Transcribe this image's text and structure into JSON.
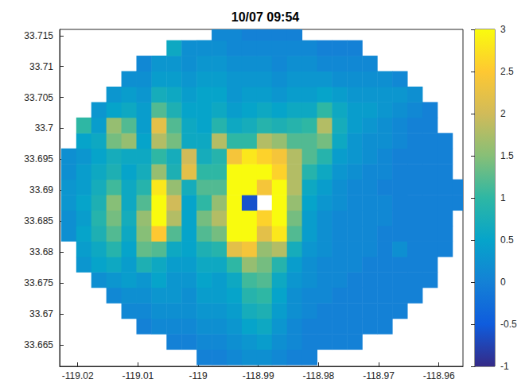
{
  "chart_data": {
    "type": "heatmap",
    "title": "10/07 09:54",
    "x": [
      -119.0215,
      -119.019,
      -119.0165,
      -119.014,
      -119.0115,
      -119.009,
      -119.0065,
      -119.004,
      -119.0015,
      -118.999,
      -118.9965,
      -118.994,
      -118.9915,
      -118.989,
      -118.9865,
      -118.984,
      -118.9815,
      -118.979,
      -118.9765,
      -118.974,
      -118.9715,
      -118.969,
      -118.9665,
      -118.964,
      -118.9615,
      -118.959,
      -118.9565
    ],
    "y": [
      33.663,
      33.6655,
      33.668,
      33.6705,
      33.673,
      33.6755,
      33.678,
      33.6805,
      33.683,
      33.6855,
      33.688,
      33.6905,
      33.693,
      33.6955,
      33.698,
      33.7005,
      33.703,
      33.7055,
      33.708,
      33.7105,
      33.713,
      33.7155
    ],
    "z": [
      [
        null,
        null,
        null,
        null,
        null,
        null,
        null,
        null,
        null,
        0,
        0,
        0.1,
        0.2,
        0.2,
        0.1,
        0,
        0,
        null,
        null,
        null,
        null,
        null,
        null,
        null,
        null,
        null,
        null
      ],
      [
        null,
        null,
        null,
        null,
        null,
        null,
        null,
        0,
        0,
        0.1,
        0.1,
        0.2,
        0.3,
        0.4,
        0.2,
        0.1,
        0,
        0,
        0,
        0,
        null,
        null,
        null,
        null,
        null,
        null,
        null
      ],
      [
        null,
        null,
        null,
        null,
        null,
        0,
        0.1,
        0.1,
        0.1,
        0.2,
        0.2,
        0.3,
        0.5,
        0.6,
        0.3,
        0.1,
        0,
        0,
        0,
        0,
        0,
        0,
        null,
        null,
        null,
        null,
        null
      ],
      [
        null,
        null,
        null,
        null,
        0.1,
        0.1,
        0.2,
        0.2,
        0.2,
        0.3,
        0.3,
        0.4,
        0.7,
        0.8,
        0.4,
        0.2,
        0.1,
        0,
        0,
        0,
        0,
        0,
        0,
        null,
        null,
        null,
        null
      ],
      [
        null,
        null,
        null,
        0.1,
        0.2,
        0.2,
        0.3,
        0.3,
        0.2,
        0.4,
        0.4,
        0.5,
        0.9,
        1.0,
        0.5,
        0.2,
        0.1,
        0.1,
        0,
        0,
        0,
        0,
        0,
        0,
        null,
        null,
        null
      ],
      [
        null,
        null,
        0.2,
        0.3,
        0.4,
        0.3,
        0.5,
        0.3,
        0.3,
        0.5,
        0.4,
        0.6,
        1.1,
        1.2,
        0.6,
        0.3,
        0.2,
        0.1,
        0.1,
        0,
        0,
        0,
        0,
        0,
        0,
        null,
        null
      ],
      [
        null,
        0.3,
        0.5,
        0.6,
        0.4,
        0.8,
        0.6,
        0.4,
        0.4,
        0.6,
        0.6,
        1.0,
        1.6,
        1.4,
        0.9,
        0.4,
        0.2,
        0.1,
        0.1,
        0.1,
        0,
        0,
        0,
        0,
        0,
        null,
        null
      ],
      [
        null,
        0.4,
        0.6,
        0.9,
        0.5,
        1.3,
        1.2,
        0.6,
        0.5,
        0.8,
        0.9,
        2.2,
        2.4,
        1.6,
        1.8,
        0.7,
        0.3,
        0.2,
        0.1,
        0.1,
        0.1,
        0,
        0.2,
        0,
        0,
        0,
        null
      ],
      [
        0.2,
        0.5,
        0.8,
        1.2,
        0.6,
        1.5,
        2.5,
        1.2,
        0.5,
        1.2,
        1.4,
        3,
        3,
        2.2,
        2.8,
        1.2,
        0.4,
        0.2,
        0.1,
        0.1,
        0.1,
        0,
        0,
        0,
        0,
        0,
        null
      ],
      [
        0.2,
        0.4,
        0.9,
        1.4,
        0.7,
        1.6,
        3,
        1.8,
        0.5,
        1.4,
        1.8,
        3,
        3,
        2.6,
        3,
        1.4,
        0.4,
        0.2,
        0.1,
        0.1,
        0.1,
        0.1,
        0,
        0,
        0,
        0,
        null
      ],
      [
        0.3,
        0.5,
        0.8,
        1.5,
        0.6,
        1.2,
        3,
        2.0,
        0.5,
        1.0,
        1.6,
        3,
        -0.6,
        null,
        3,
        1.6,
        0.5,
        0.3,
        0.2,
        0.1,
        0.1,
        0.1,
        0,
        0,
        0,
        0,
        0
      ],
      [
        0.3,
        0.4,
        0.7,
        1.1,
        0.6,
        0.9,
        2.8,
        1.6,
        0.7,
        1.2,
        1.2,
        3,
        3,
        2.4,
        3,
        1.8,
        0.6,
        0.4,
        0.2,
        0.1,
        0.1,
        0,
        0,
        0,
        0,
        0,
        0
      ],
      [
        0.2,
        0.4,
        0.6,
        0.8,
        0.5,
        0.7,
        1.6,
        0.8,
        2.2,
        1.0,
        1.0,
        3,
        3,
        3,
        2.6,
        1.8,
        0.9,
        0.6,
        0.3,
        0.2,
        0.1,
        0.1,
        0,
        0,
        0,
        0,
        null
      ],
      [
        0.2,
        0.3,
        0.5,
        0.7,
        0.6,
        0.6,
        1.0,
        0.7,
        2.0,
        0.7,
        0.9,
        2.4,
        2.8,
        2.6,
        2.4,
        1.8,
        1.2,
        0.9,
        0.4,
        0.3,
        0.2,
        0.1,
        0,
        0,
        0,
        0,
        null
      ],
      [
        null,
        0.5,
        0.6,
        1.4,
        1.6,
        0.5,
        1.8,
        1.4,
        0.6,
        0.6,
        1.8,
        1.0,
        1.0,
        1.8,
        1.6,
        1.2,
        1.2,
        1.4,
        0.6,
        0.3,
        0.2,
        0.2,
        0.1,
        0,
        0,
        0,
        null
      ],
      [
        null,
        1.0,
        0.4,
        1.6,
        1.2,
        0.4,
        2.2,
        1.2,
        0.6,
        0.5,
        0.9,
        0.6,
        0.7,
        0.9,
        0.8,
        0.9,
        1.0,
        1.8,
        0.7,
        0.4,
        0.3,
        0.2,
        0.1,
        0,
        0,
        null,
        null
      ],
      [
        null,
        null,
        0.3,
        0.5,
        0.6,
        0.4,
        1.2,
        0.8,
        0.5,
        0.5,
        0.6,
        0.4,
        0.5,
        0.6,
        0.5,
        0.6,
        0.6,
        1.0,
        0.6,
        0.4,
        0.4,
        0.3,
        0.2,
        0.1,
        0,
        null,
        null
      ],
      [
        null,
        null,
        null,
        0.3,
        0.4,
        0.3,
        0.7,
        0.6,
        0.4,
        0.5,
        0.5,
        0.3,
        0.4,
        0.4,
        0.3,
        0.4,
        0.4,
        0.5,
        0.4,
        0.3,
        0.3,
        0.3,
        0.3,
        0.2,
        null,
        null,
        null
      ],
      [
        null,
        null,
        null,
        null,
        0.2,
        0.2,
        0.4,
        0.4,
        0.3,
        0.4,
        0.4,
        0.3,
        0.3,
        0.3,
        0.2,
        0.3,
        0.3,
        0.3,
        0.2,
        0.2,
        0.2,
        0.2,
        0.1,
        null,
        null,
        null,
        null
      ],
      [
        null,
        null,
        null,
        null,
        null,
        0.1,
        0.3,
        0.3,
        0.2,
        0.3,
        0.3,
        0.2,
        0.2,
        0.2,
        0.1,
        0.2,
        0.2,
        0.1,
        0.1,
        0.1,
        0.1,
        null,
        null,
        null,
        null,
        null,
        null
      ],
      [
        null,
        null,
        null,
        null,
        null,
        null,
        null,
        0.6,
        0.2,
        0.2,
        0.2,
        0.1,
        0.1,
        0.1,
        0.1,
        0.1,
        0.1,
        0,
        0,
        0,
        null,
        null,
        null,
        null,
        null,
        null,
        null
      ],
      [
        null,
        null,
        null,
        null,
        null,
        null,
        null,
        null,
        null,
        null,
        0.1,
        0.1,
        0,
        0,
        0,
        0,
        null,
        null,
        null,
        null,
        null,
        null,
        null,
        null,
        null,
        null,
        null
      ]
    ],
    "xlim": [
      -119.023,
      -118.956
    ],
    "ylim": [
      33.6615,
      33.716
    ],
    "xticks": [
      -119.02,
      -119.01,
      -119,
      -118.99,
      -118.98,
      -118.97,
      -118.96
    ],
    "yticks": [
      33.665,
      33.67,
      33.675,
      33.68,
      33.685,
      33.69,
      33.695,
      33.7,
      33.705,
      33.71,
      33.715
    ],
    "colorbar": {
      "range": [
        -1,
        3
      ],
      "ticks": [
        -1,
        -0.5,
        0,
        0.5,
        1,
        1.5,
        2,
        2.5,
        3
      ]
    },
    "grid": false
  }
}
